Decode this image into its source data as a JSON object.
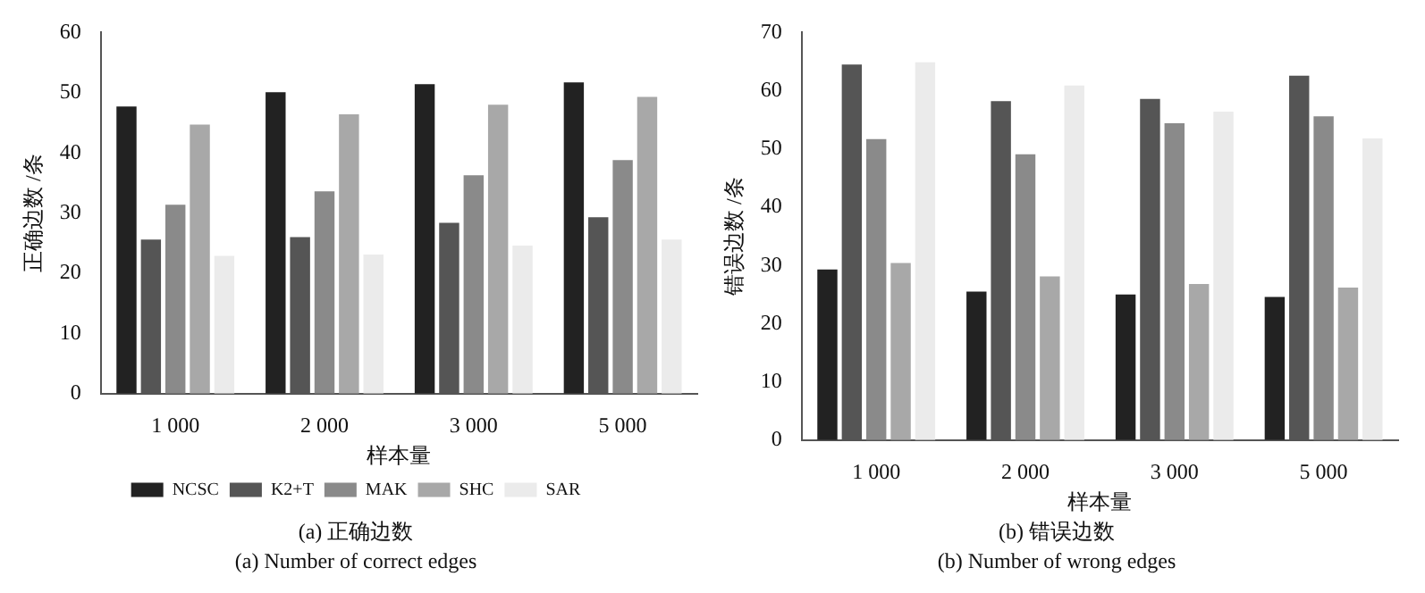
{
  "chart_data": [
    {
      "type": "bar",
      "title": "(a) 正确边数",
      "subtitle": "(a) Number of correct edges",
      "xlabel": "样本量",
      "ylabel": "正确边数 /条",
      "categories": [
        "1 000",
        "2 000",
        "3 000",
        "5 000"
      ],
      "ylim": [
        0,
        60
      ],
      "yticks": [
        0,
        10,
        20,
        30,
        40,
        50,
        60
      ],
      "grid": false,
      "legend": "bottom",
      "series": [
        {
          "name": "NCSC",
          "color": "#222222",
          "values": [
            47.7,
            50.1,
            51.4,
            51.7
          ]
        },
        {
          "name": "K2+T",
          "color": "#555555",
          "values": [
            25.6,
            26.0,
            28.4,
            29.3
          ]
        },
        {
          "name": "MAK",
          "color": "#8a8a8a",
          "values": [
            31.4,
            33.6,
            36.3,
            38.8
          ]
        },
        {
          "name": "SHC",
          "color": "#a8a8a8",
          "values": [
            44.7,
            46.4,
            48.0,
            49.3
          ]
        },
        {
          "name": "SAR",
          "color": "#ebebeb",
          "values": [
            22.9,
            23.1,
            24.6,
            25.6
          ]
        }
      ]
    },
    {
      "type": "bar",
      "title": "(b) 错误边数",
      "subtitle": "(b) Number of wrong edges",
      "xlabel": "样本量",
      "ylabel": "错误边数 /条",
      "categories": [
        "1 000",
        "2 000",
        "3 000",
        "5 000"
      ],
      "ylim": [
        0,
        70
      ],
      "yticks": [
        0,
        10,
        20,
        30,
        40,
        50,
        60,
        70
      ],
      "grid": false,
      "series": [
        {
          "color": "#222222",
          "values": [
            29.3,
            25.5,
            25.0,
            24.6
          ]
        },
        {
          "color": "#555555",
          "values": [
            64.5,
            58.2,
            58.6,
            62.6
          ]
        },
        {
          "color": "#8a8a8a",
          "values": [
            51.7,
            49.1,
            54.4,
            55.6
          ]
        },
        {
          "color": "#a8a8a8",
          "values": [
            30.4,
            28.1,
            26.8,
            26.2
          ]
        },
        {
          "color": "#ebebeb",
          "values": [
            64.9,
            60.9,
            56.4,
            51.8
          ]
        }
      ]
    }
  ]
}
